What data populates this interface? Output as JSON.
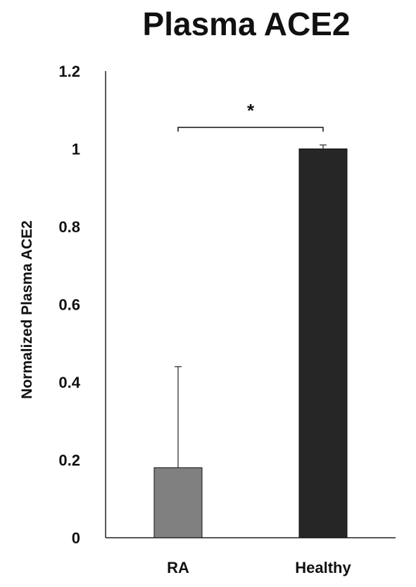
{
  "chart_data": {
    "type": "bar",
    "title": "Plasma ACE2",
    "ylabel": "Normalized Plasma ACE2",
    "xlabel": "",
    "categories": [
      "RA",
      "Healthy"
    ],
    "values": [
      0.18,
      1.0
    ],
    "error_upper": [
      0.26,
      0.01
    ],
    "bar_colors": [
      "#808080",
      "#262626"
    ],
    "ylim": [
      0,
      1.2
    ],
    "yticks": [
      0,
      0.2,
      0.4,
      0.6,
      0.8,
      1,
      1.2
    ],
    "ytick_labels": [
      "0",
      "0.2",
      "0.4",
      "0.6",
      "0.8",
      "1",
      "1.2"
    ],
    "grid": false,
    "legend": "none",
    "significance": {
      "between": [
        "RA",
        "Healthy"
      ],
      "label": "*"
    }
  }
}
